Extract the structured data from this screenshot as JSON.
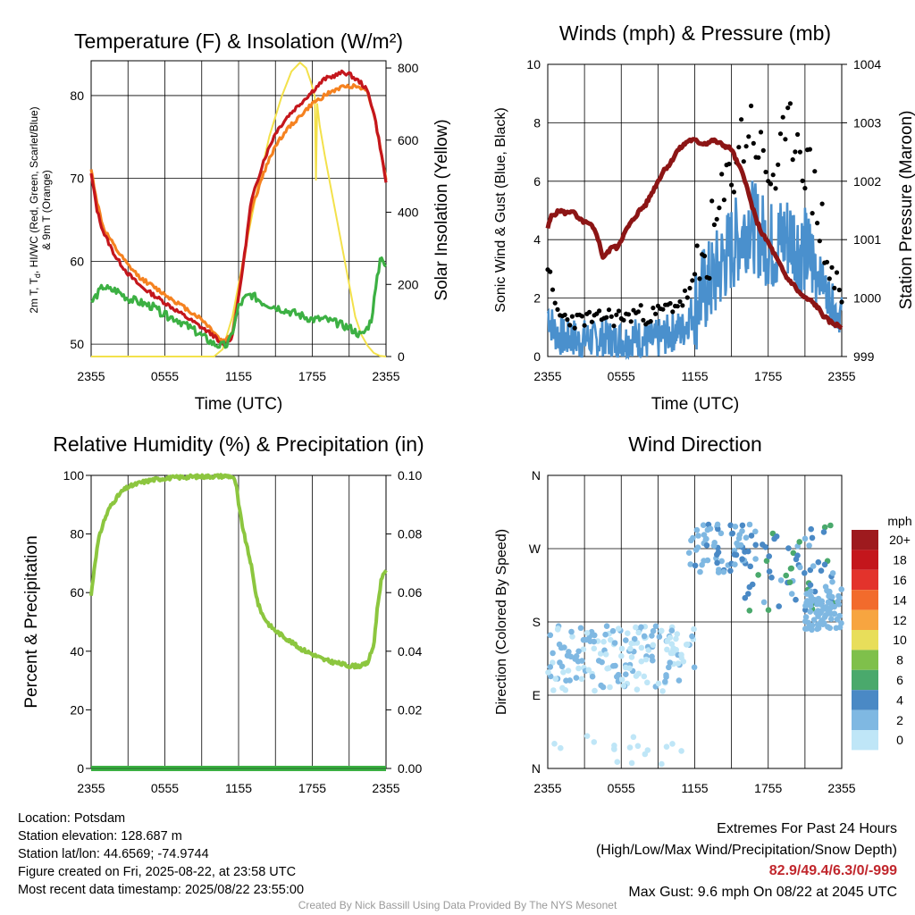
{
  "colors": {
    "temp_2m": "#c4161c",
    "temp_9m": "#f58220",
    "dewpoint": "#3cb043",
    "insolation": "#f3e14b",
    "wind_speed": "#4a90cd",
    "gust": "#000000",
    "pressure": "#8c1515",
    "humidity": "#8cc63f",
    "precip": "#3cb043"
  },
  "x_ticks": [
    "2355",
    "0555",
    "1155",
    "1755",
    "2355"
  ],
  "chart_data": [
    {
      "id": "temp",
      "type": "line",
      "title": "Temperature (F) & Insolation (W/m²)",
      "xlabel": "Time (UTC)",
      "ylabel_left": "2m T, Td, HI/WC (Red, Green, Scarlet/Blue) & 9m T (Orange)",
      "ylabel_left_line1": "2m T, T",
      "ylabel_left_line1_sub": "d",
      "ylabel_left_line1_rest": ", HI/WC (Red, Green, Scarlet/Blue)",
      "ylabel_left_line2": "& 9m T (Orange)",
      "ylabel_right": "Solar Insolation (Yellow)",
      "x_hours": [
        0,
        24
      ],
      "ylim_left": [
        48.5,
        84.2
      ],
      "ylim_right": [
        0,
        820
      ],
      "yticks_left": [
        50,
        60,
        70,
        80
      ],
      "yticks_right": [
        0,
        200,
        400,
        600,
        800
      ],
      "series": [
        {
          "key": "insolation",
          "axis": "right",
          "x": [
            0,
            1,
            2,
            3,
            4,
            5,
            6,
            7,
            8,
            9,
            10,
            10.7,
            11.5,
            12.5,
            13.5,
            14.5,
            15.5,
            16.3,
            17,
            17.5,
            17.9,
            18.2,
            18.3,
            18.4,
            18.6,
            19,
            19.5,
            20,
            20.5,
            21,
            21.5,
            22,
            22.5,
            23,
            23.5,
            24
          ],
          "y": [
            0,
            0,
            0,
            0,
            0,
            0,
            0,
            0,
            0,
            0,
            0,
            20,
            110,
            290,
            460,
            610,
            720,
            790,
            815,
            800,
            760,
            720,
            490,
            700,
            640,
            560,
            470,
            380,
            290,
            200,
            110,
            60,
            30,
            10,
            2,
            0
          ]
        },
        {
          "key": "temp_9m",
          "axis": "left",
          "x": [
            0,
            0.5,
            1,
            2,
            3,
            4,
            5,
            6,
            7,
            8,
            9,
            10,
            10.5,
            11,
            11.5,
            12,
            12.5,
            13,
            14,
            15,
            16,
            17,
            18,
            19,
            20,
            21,
            22,
            22.5,
            23,
            23.5,
            24
          ],
          "y": [
            71,
            67,
            64,
            61.5,
            59.5,
            58,
            57,
            56,
            55,
            54,
            53,
            51.5,
            50.5,
            50.5,
            51.5,
            56,
            61,
            66,
            70.5,
            74,
            76,
            77.5,
            79,
            80,
            80.8,
            81.2,
            81,
            80.5,
            78,
            74,
            70
          ]
        },
        {
          "key": "temp_2m",
          "axis": "left",
          "x": [
            0,
            0.5,
            1,
            2,
            3,
            4,
            5,
            6,
            7,
            8,
            9,
            10,
            10.5,
            11,
            11.5,
            12,
            12.5,
            13,
            14,
            15,
            16,
            17,
            18,
            19,
            20,
            20.5,
            21,
            21.5,
            22,
            22.5,
            23,
            23.5,
            24
          ],
          "y": [
            70.5,
            66,
            63.5,
            60.5,
            58.5,
            57,
            56,
            55,
            54,
            53,
            52,
            51,
            50,
            50,
            51,
            55.5,
            61,
            67,
            72,
            75.5,
            77.5,
            79,
            80.5,
            82,
            82.5,
            82.8,
            82.6,
            82,
            81.5,
            80.5,
            78,
            74,
            69.5
          ]
        },
        {
          "key": "dewpoint",
          "axis": "left",
          "x": [
            0,
            0.5,
            1,
            1.5,
            2,
            3,
            4,
            5,
            6,
            7,
            8,
            9,
            10,
            10.5,
            11,
            11.3,
            11.6,
            12,
            12.5,
            13,
            14,
            15,
            16,
            17,
            18,
            19,
            20,
            21,
            21.5,
            22,
            22.5,
            22.8,
            23,
            23.3,
            23.6,
            24
          ],
          "y": [
            55,
            56,
            57,
            56.5,
            56.5,
            55.5,
            55,
            54.5,
            53.5,
            53,
            52,
            51,
            50,
            49.8,
            49.8,
            50.5,
            52,
            54.5,
            55.5,
            56,
            55,
            54.5,
            54,
            53.5,
            53,
            53,
            52.5,
            52,
            51.5,
            51,
            52,
            53,
            55,
            58,
            61,
            59
          ]
        }
      ]
    },
    {
      "id": "winds",
      "type": "line+scatter",
      "title": "Winds (mph) & Pressure (mb)",
      "xlabel": "Time (UTC)",
      "ylabel_left": "Sonic Wind & Gust (Blue, Black)",
      "ylabel_right": "Station Pressure (Maroon)",
      "ylim_left": [
        0,
        10
      ],
      "ylim_right": [
        999,
        1004
      ],
      "yticks_left": [
        0,
        2,
        4,
        6,
        8,
        10
      ],
      "yticks_right": [
        999,
        1000,
        1001,
        1002,
        1003,
        1004
      ],
      "pressure": {
        "x": [
          0,
          0.3,
          1,
          1.5,
          2,
          2.5,
          3,
          3.5,
          4,
          4.5,
          5,
          5.3,
          5.6,
          6,
          6.5,
          7,
          7.5,
          8,
          8.5,
          9,
          9.5,
          10,
          10.5,
          11,
          11.5,
          12,
          12.5,
          13,
          13.5,
          14,
          14.5,
          15,
          15.5,
          16,
          16.5,
          17,
          17.5,
          18,
          18.5,
          19,
          19.5,
          20,
          20.5,
          21,
          21.5,
          22,
          22.5,
          23,
          23.5,
          24
        ],
        "y": [
          1001.2,
          1001.4,
          1001.5,
          1001.45,
          1001.5,
          1001.35,
          1001.3,
          1001.25,
          1001.1,
          1000.7,
          1000.8,
          1000.9,
          1000.85,
          1001.0,
          1001.2,
          1001.35,
          1001.5,
          1001.6,
          1001.8,
          1002.0,
          1002.2,
          1002.3,
          1002.5,
          1002.6,
          1002.7,
          1002.7,
          1002.65,
          1002.65,
          1002.7,
          1002.65,
          1002.6,
          1002.55,
          1002.3,
          1002.1,
          1001.7,
          1001.35,
          1001.1,
          1000.95,
          1000.75,
          1000.55,
          1000.35,
          1000.25,
          1000.1,
          1000.0,
          999.95,
          999.85,
          999.7,
          999.6,
          999.55,
          999.5
        ]
      },
      "wind": {
        "x": [
          0,
          0.5,
          1,
          1.5,
          2,
          2.5,
          3,
          3.5,
          4,
          4.5,
          5,
          5.5,
          6,
          6.5,
          7,
          7.5,
          8,
          8.5,
          9,
          9.5,
          10,
          10.5,
          11,
          11.5,
          12,
          12.5,
          13,
          13.5,
          14,
          14.5,
          15,
          15.5,
          16,
          16.5,
          17,
          17.5,
          18,
          18.5,
          19,
          19.5,
          20,
          20.5,
          21,
          21.5,
          22,
          22.5,
          23,
          23.5,
          24
        ],
        "y": [
          1.5,
          0.9,
          0.7,
          0.6,
          0.7,
          0.5,
          0.6,
          0.6,
          0.5,
          0.7,
          0.6,
          0.5,
          0.6,
          0.5,
          0.7,
          0.6,
          0.5,
          0.5,
          0.6,
          0.7,
          0.8,
          0.9,
          0.9,
          1.3,
          1.6,
          2.1,
          2.4,
          2.6,
          3.0,
          3.4,
          3.7,
          4.0,
          4.3,
          4.7,
          4.3,
          4.1,
          3.9,
          3.7,
          4.0,
          4.1,
          4.1,
          3.7,
          3.6,
          3.3,
          3.0,
          2.5,
          2.0,
          1.6,
          1.4
        ]
      },
      "gust": {
        "x": [
          0,
          0.5,
          1,
          1.5,
          2,
          2.5,
          3,
          3.5,
          4,
          4.5,
          5,
          5.5,
          6,
          6.5,
          7,
          7.5,
          8,
          8.5,
          9,
          9.5,
          10,
          10.5,
          11,
          11.5,
          12,
          12.5,
          13,
          13.5,
          14,
          14.5,
          15,
          15.5,
          16,
          16.5,
          17,
          17.5,
          18,
          18.5,
          19,
          19.5,
          20,
          20.5,
          21,
          21.5,
          22,
          22.5,
          23,
          23.5,
          24
        ],
        "y": [
          3.2,
          1.8,
          1.4,
          1.3,
          1.3,
          1.2,
          1.3,
          1.3,
          1.2,
          1.4,
          1.4,
          1.3,
          1.4,
          1.3,
          1.5,
          1.5,
          1.4,
          1.4,
          1.5,
          1.6,
          1.7,
          1.8,
          1.9,
          2.2,
          2.6,
          3.0,
          3.5,
          4.2,
          4.8,
          5.5,
          6.3,
          7.2,
          7.4,
          8.0,
          7.6,
          6.5,
          6.3,
          6.2,
          6.7,
          7.2,
          7.8,
          7.6,
          6.8,
          5.8,
          5.4,
          4.0,
          3.0,
          2.4,
          1.7
        ]
      }
    },
    {
      "id": "humidity",
      "type": "line",
      "title": "Relative Humidity (%) & Precipitation (in)",
      "ylabel_left": "Percent & Precipitation",
      "ylim_left": [
        0,
        100
      ],
      "ylim_right": [
        0,
        0.1
      ],
      "yticks_left": [
        0,
        20,
        40,
        60,
        80,
        100
      ],
      "yticks_right": [
        "0.00",
        "0.02",
        "0.04",
        "0.06",
        "0.08",
        "0.10"
      ],
      "series": [
        {
          "key": "humidity",
          "name": "",
          "x": [
            0,
            0.3,
            0.6,
            1,
            1.5,
            2,
            2.5,
            3,
            4,
            5,
            6,
            7,
            8,
            9,
            10,
            11,
            11.5,
            11.8,
            12,
            12.3,
            12.6,
            13,
            13.3,
            13.6,
            14,
            14.5,
            15,
            16,
            17,
            18,
            19,
            20,
            21,
            21.5,
            22,
            22.5,
            23,
            23.3,
            23.6,
            24
          ],
          "y": [
            59,
            70,
            78,
            84,
            89,
            92,
            94.5,
            96,
            97.5,
            98.5,
            99,
            99.3,
            99.5,
            99.6,
            99.7,
            99.8,
            99.6,
            97,
            90,
            83,
            77,
            70,
            62,
            56,
            52,
            49,
            47,
            44,
            41,
            39,
            37,
            36,
            35,
            35,
            35,
            36,
            42,
            55,
            64,
            68
          ]
        },
        {
          "key": "precip",
          "name": "",
          "x": [
            0,
            24
          ],
          "y": [
            0,
            0
          ]
        }
      ]
    },
    {
      "id": "direction",
      "type": "scatter",
      "title": "Wind Direction",
      "ylabel_left": "Direction (Colored By Speed)",
      "yticks_labels": [
        "N",
        "E",
        "S",
        "W",
        "N"
      ],
      "yticks_values": [
        0,
        90,
        180,
        270,
        360
      ],
      "colorbar": {
        "unit": "mph",
        "labels": [
          "20+",
          "18",
          "16",
          "14",
          "12",
          "10",
          "8",
          "6",
          "4",
          "2",
          "0"
        ],
        "colors": [
          "#9e1a1e",
          "#c4161c",
          "#e3332c",
          "#f26b2c",
          "#f7a540",
          "#e8de5a",
          "#7fc04b",
          "#4aa96c",
          "#4a89c5",
          "#7fb8e2",
          "#bfe6f7"
        ]
      },
      "clusters": [
        {
          "x": [
            0,
            12
          ],
          "y": [
            95,
            175
          ],
          "speed": [
            0,
            2
          ]
        },
        {
          "x": [
            11.5,
            17
          ],
          "y": [
            240,
            300
          ],
          "speed": [
            1,
            4
          ]
        },
        {
          "x": [
            16,
            23.5
          ],
          "y": [
            190,
            300
          ],
          "speed": [
            2,
            6
          ]
        },
        {
          "x": [
            21,
            24
          ],
          "y": [
            170,
            220
          ],
          "speed": [
            1,
            3
          ]
        }
      ]
    }
  ],
  "info_left": {
    "location": "Location: Potsdam",
    "elevation": "Station elevation: 128.687 m",
    "latlon": "Station lat/lon: 44.6569; -74.9744",
    "created": "Figure created on Fri, 2025-08-22, at 23:58 UTC",
    "recent": "Most recent data timestamp: 2025/08/22 23:55:00"
  },
  "info_right": {
    "title": "Extremes For Past 24 Hours",
    "subtitle": "(High/Low/Max Wind/Precipitation/Snow Depth)",
    "values": "82.9/49.4/6.3/0/-999",
    "gust": "Max Gust: 9.6 mph On 08/22 at 2045 UTC"
  },
  "credit": "Created By Nick Bassill Using Data Provided By The NYS Mesonet"
}
